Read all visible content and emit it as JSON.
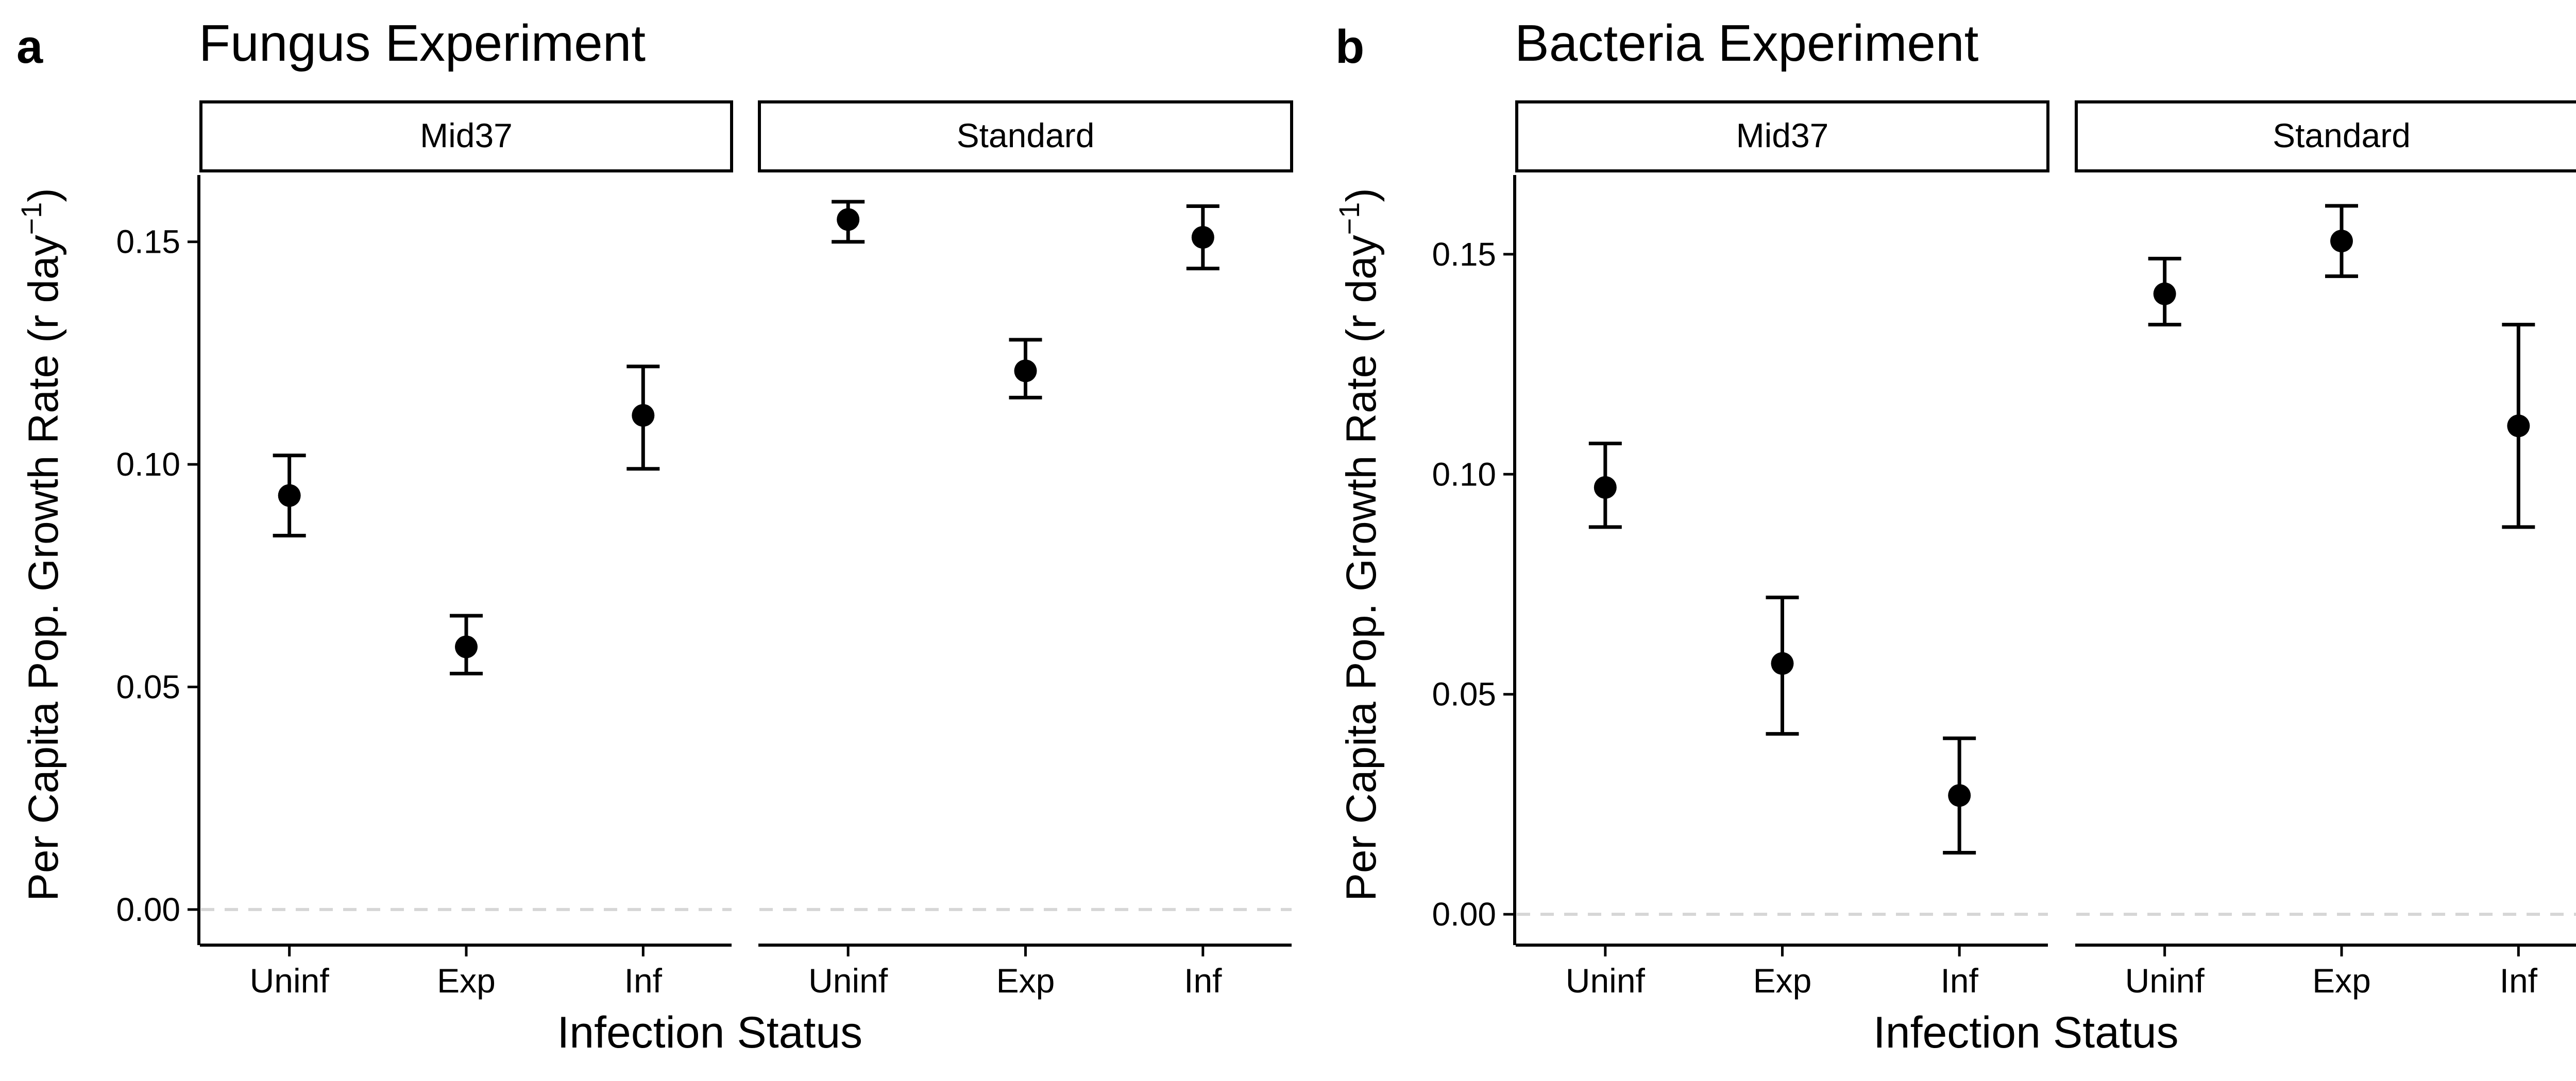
{
  "chart_data": [
    {
      "type": "scatter",
      "panel_letter": "a",
      "title": "Fungus Experiment",
      "xlabel": "Infection Status",
      "ylabel": "Per Capita Pop. Growth Rate (r day",
      "ylabel_exponent": "−1",
      "ylabel_close": ")",
      "ylim": [
        -0.008,
        0.165
      ],
      "yticks": [
        0.0,
        0.05,
        0.1,
        0.15
      ],
      "ytick_labels": [
        "0.00",
        "0.05",
        "0.10",
        "0.15"
      ],
      "reference_line": 0,
      "categories": [
        "Uninf",
        "Exp",
        "Inf"
      ],
      "facets": [
        {
          "label": "Mid37",
          "values": [
            0.093,
            0.059,
            0.111
          ],
          "lower": [
            0.084,
            0.053,
            0.099
          ],
          "upper": [
            0.102,
            0.066,
            0.122
          ]
        },
        {
          "label": "Standard",
          "values": [
            0.155,
            0.121,
            0.151
          ],
          "lower": [
            0.15,
            0.115,
            0.144
          ],
          "upper": [
            0.159,
            0.128,
            0.158
          ]
        }
      ]
    },
    {
      "type": "scatter",
      "panel_letter": "b",
      "title": "Bacteria Experiment",
      "xlabel": "Infection Status",
      "ylabel": "Per Capita Pop. Growth Rate (r day",
      "ylabel_exponent": "−1",
      "ylabel_close": ")",
      "ylim": [
        -0.007,
        0.168
      ],
      "yticks": [
        0.0,
        0.05,
        0.1,
        0.15
      ],
      "ytick_labels": [
        "0.00",
        "0.05",
        "0.10",
        "0.15"
      ],
      "reference_line": 0,
      "categories": [
        "Uninf",
        "Exp",
        "Inf"
      ],
      "facets": [
        {
          "label": "Mid37",
          "values": [
            0.097,
            0.057,
            0.027
          ],
          "lower": [
            0.088,
            0.041,
            0.014
          ],
          "upper": [
            0.107,
            0.072,
            0.04
          ]
        },
        {
          "label": "Standard",
          "values": [
            0.141,
            0.153,
            0.111
          ],
          "lower": [
            0.134,
            0.145,
            0.088
          ],
          "upper": [
            0.149,
            0.161,
            0.134
          ]
        }
      ]
    }
  ]
}
